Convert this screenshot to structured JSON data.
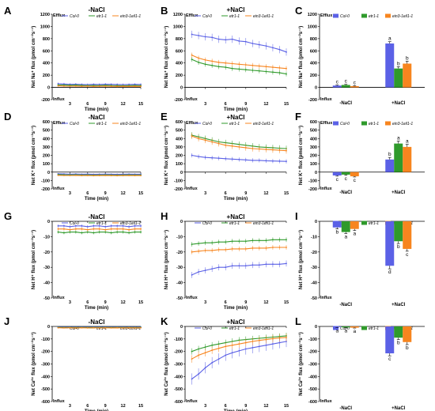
{
  "colors": {
    "col0": "#5b61e6",
    "etr1": "#2f9a2b",
    "ein3": "#f7851f"
  },
  "legend": [
    "Col-0",
    "etr1-1",
    "ein3-1eil1-1"
  ],
  "chart_data": [
    {
      "id": "A",
      "type": "line",
      "title": "-NaCl",
      "xlabel": "Time (min)",
      "ylabel": "Net Na⁺ flux (pmol cm⁻²s⁻¹)",
      "ylim": [
        -200,
        1200
      ],
      "yticks": [
        -200,
        0,
        200,
        400,
        600,
        800,
        1000,
        1200
      ],
      "xticks": [
        3,
        6,
        9,
        12,
        15
      ],
      "efflux": "Efflux",
      "influx": "Influx",
      "series": [
        {
          "name": "Col-0",
          "values": [
            60,
            55,
            50,
            52,
            48,
            45,
            50,
            47,
            52,
            50,
            48,
            45,
            47,
            50,
            48
          ],
          "err": 20
        },
        {
          "name": "etr1-1",
          "values": [
            40,
            38,
            35,
            37,
            33,
            30,
            32,
            30,
            34,
            31,
            30,
            28,
            30,
            32,
            30
          ],
          "err": 15
        },
        {
          "name": "ein3-1eil1-1",
          "values": [
            25,
            22,
            20,
            22,
            18,
            20,
            17,
            19,
            20,
            18,
            16,
            18,
            17,
            18,
            16
          ],
          "err": 12
        }
      ]
    },
    {
      "id": "B",
      "type": "line",
      "title": "+NaCl",
      "xlabel": "Time (min)",
      "ylabel": "Net Na⁺ flux (pmol cm⁻²s⁻¹)",
      "ylim": [
        -200,
        1200
      ],
      "yticks": [
        -200,
        0,
        200,
        400,
        600,
        800,
        1000,
        1200
      ],
      "xticks": [
        3,
        6,
        9,
        12,
        15
      ],
      "efflux": "Efflux",
      "influx": "Influx",
      "series": [
        {
          "name": "Col-0",
          "values": [
            870,
            850,
            830,
            820,
            790,
            780,
            790,
            760,
            750,
            720,
            700,
            680,
            650,
            620,
            580
          ],
          "err": 60
        },
        {
          "name": "etr1-1",
          "values": [
            460,
            410,
            380,
            360,
            340,
            330,
            310,
            300,
            290,
            280,
            270,
            260,
            250,
            240,
            220
          ],
          "err": 40
        },
        {
          "name": "ein3-1eil1-1",
          "values": [
            530,
            480,
            450,
            430,
            410,
            400,
            390,
            380,
            370,
            360,
            350,
            340,
            330,
            320,
            310
          ],
          "err": 40
        }
      ]
    },
    {
      "id": "C",
      "type": "bar",
      "categories": [
        "-NaCl",
        "+NaCl"
      ],
      "ylabel": "Net Na⁺ flux (pmol cm⁻²s⁻¹)",
      "ylim": [
        -200,
        1200
      ],
      "yticks": [
        -200,
        0,
        200,
        400,
        600,
        800,
        1000,
        1200
      ],
      "efflux": "Efflux",
      "influx": "Influx",
      "series": [
        {
          "name": "Col-0",
          "values": [
            30,
            720
          ],
          "err": [
            10,
            30
          ],
          "sig": [
            "c",
            "a"
          ]
        },
        {
          "name": "etr1-1",
          "values": [
            40,
            310
          ],
          "err": [
            10,
            30
          ],
          "sig": [
            "c",
            "b"
          ]
        },
        {
          "name": "ein3-1eil1-1",
          "values": [
            20,
            390
          ],
          "err": [
            10,
            40
          ],
          "sig": [
            "c",
            "b"
          ]
        }
      ]
    },
    {
      "id": "D",
      "type": "line",
      "title": "-NaCl",
      "xlabel": "Time (min)",
      "ylabel": "Net K⁺ flux (pmol cm⁻²s⁻¹)",
      "ylim": [
        -200,
        600
      ],
      "yticks": [
        -200,
        -100,
        0,
        100,
        200,
        300,
        400,
        500,
        600
      ],
      "xticks": [
        3,
        6,
        9,
        12,
        15
      ],
      "efflux": "Efflux",
      "influx": "Influx",
      "series": [
        {
          "name": "Col-0",
          "values": [
            -20,
            -22,
            -25,
            -23,
            -25,
            -24,
            -26,
            -25,
            -24,
            -25,
            -26,
            -25,
            -24,
            -25,
            -25
          ],
          "err": 8
        },
        {
          "name": "etr1-1",
          "values": [
            -30,
            -32,
            -33,
            -32,
            -34,
            -33,
            -35,
            -34,
            -33,
            -34,
            -35,
            -34,
            -33,
            -34,
            -34
          ],
          "err": 6
        },
        {
          "name": "ein3-1eil1-1",
          "values": [
            -38,
            -40,
            -40,
            -39,
            -41,
            -40,
            -42,
            -41,
            -40,
            -41,
            -42,
            -41,
            -40,
            -41,
            -41
          ],
          "err": 6
        }
      ]
    },
    {
      "id": "E",
      "type": "line",
      "title": "+NaCl",
      "xlabel": "Time (min)",
      "ylabel": "Net K⁺ flux (pmol cm⁻²s⁻¹)",
      "ylim": [
        -200,
        600
      ],
      "yticks": [
        -200,
        -100,
        0,
        100,
        200,
        300,
        400,
        500,
        600
      ],
      "xticks": [
        3,
        6,
        9,
        12,
        15
      ],
      "efflux": "Efflux",
      "influx": "Influx",
      "series": [
        {
          "name": "Col-0",
          "values": [
            200,
            185,
            175,
            170,
            165,
            160,
            155,
            150,
            145,
            140,
            140,
            135,
            132,
            130,
            128
          ],
          "err": 25
        },
        {
          "name": "etr1-1",
          "values": [
            440,
            420,
            400,
            380,
            360,
            350,
            340,
            330,
            320,
            310,
            300,
            295,
            290,
            285,
            280
          ],
          "err": 35
        },
        {
          "name": "ein3-1eil1-1",
          "values": [
            430,
            400,
            380,
            360,
            340,
            320,
            310,
            300,
            290,
            280,
            275,
            270,
            265,
            260,
            255
          ],
          "err": 35
        }
      ]
    },
    {
      "id": "F",
      "type": "bar",
      "categories": [
        "-NaCl",
        "+NaCl"
      ],
      "ylabel": "Net K⁺ flux (pmol cm⁻²s⁻¹)",
      "ylim": [
        -200,
        600
      ],
      "yticks": [
        -200,
        -100,
        0,
        100,
        200,
        300,
        400,
        500,
        600
      ],
      "efflux": "Efflux",
      "influx": "Influx",
      "series": [
        {
          "name": "Col-0",
          "values": [
            -40,
            150
          ],
          "err": [
            8,
            25
          ],
          "sig": [
            "c",
            "b"
          ]
        },
        {
          "name": "etr1-1",
          "values": [
            -30,
            340
          ],
          "err": [
            8,
            30
          ],
          "sig": [
            "c",
            "a"
          ]
        },
        {
          "name": "ein3-1eil1-1",
          "values": [
            -50,
            300
          ],
          "err": [
            8,
            30
          ],
          "sig": [
            "c",
            "a"
          ]
        }
      ]
    },
    {
      "id": "G",
      "type": "line",
      "title": "-NaCl",
      "xlabel": "Time (min)",
      "ylabel": "Net H⁺ flux (pmol cm⁻²s⁻¹)",
      "ylim": [
        -50,
        0
      ],
      "yticks": [
        -50,
        -40,
        -30,
        -20,
        -10,
        0
      ],
      "xticks": [
        3,
        6,
        9,
        12,
        15
      ],
      "influx": "Influx",
      "series": [
        {
          "name": "Col-0",
          "values": [
            -3,
            -3,
            -3.5,
            -3,
            -3,
            -3.5,
            -3,
            -3,
            -3.5,
            -3,
            -3,
            -3,
            -3.5,
            -3,
            -3
          ],
          "err": 1
        },
        {
          "name": "etr1-1",
          "values": [
            -7,
            -7.5,
            -7,
            -7,
            -7.5,
            -7,
            -7.5,
            -7,
            -7,
            -7.5,
            -7,
            -7,
            -7.5,
            -7,
            -7
          ],
          "err": 1
        },
        {
          "name": "ein3-1eil1-1",
          "values": [
            -5,
            -5,
            -5.5,
            -5,
            -5,
            -5.5,
            -5,
            -5,
            -5.5,
            -5,
            -5,
            -5,
            -5.5,
            -5,
            -5
          ],
          "err": 1
        }
      ]
    },
    {
      "id": "H",
      "type": "line",
      "title": "+NaCl",
      "xlabel": "Time (min)",
      "ylabel": "Net H⁺ flux (pmol cm⁻²s⁻¹)",
      "ylim": [
        -50,
        0
      ],
      "yticks": [
        -50,
        -40,
        -30,
        -20,
        -10,
        0
      ],
      "xticks": [
        3,
        6,
        9,
        12,
        15
      ],
      "influx": "Influx",
      "series": [
        {
          "name": "Col-0",
          "values": [
            -35,
            -33,
            -32,
            -31,
            -30,
            -30,
            -29,
            -29,
            -29,
            -28.5,
            -28.5,
            -28,
            -28,
            -28,
            -27.5
          ],
          "err": 2
        },
        {
          "name": "etr1-1",
          "values": [
            -15,
            -14.5,
            -14,
            -14,
            -13.5,
            -13.5,
            -13,
            -13,
            -13,
            -12.5,
            -12.5,
            -12.5,
            -12,
            -12,
            -12
          ],
          "err": 1.5
        },
        {
          "name": "ein3-1eil1-1",
          "values": [
            -20,
            -19.5,
            -19,
            -19,
            -18.5,
            -18.5,
            -18,
            -18,
            -18,
            -17.5,
            -17.5,
            -17.5,
            -17,
            -17,
            -17
          ],
          "err": 1.5
        }
      ]
    },
    {
      "id": "I",
      "type": "bar",
      "categories": [
        "-NaCl",
        "+NaCl"
      ],
      "ylabel": "Net H⁺ flux (pmol cm⁻²s⁻¹)",
      "ylim": [
        -50,
        0
      ],
      "yticks": [
        -50,
        -40,
        -30,
        -20,
        -10,
        0
      ],
      "influx": "Influx",
      "series": [
        {
          "name": "Col-0",
          "values": [
            -4,
            -29
          ],
          "err": [
            1,
            2
          ],
          "sig": [
            "b",
            "d"
          ]
        },
        {
          "name": "etr1-1",
          "values": [
            -7,
            -13
          ],
          "err": [
            1,
            1.5
          ],
          "sig": [
            "a",
            "b"
          ]
        },
        {
          "name": "ein3-1eil1-1",
          "values": [
            -5,
            -18
          ],
          "err": [
            1,
            1.5
          ],
          "sig": [
            "a",
            "c"
          ]
        }
      ]
    },
    {
      "id": "J",
      "type": "line",
      "title": "-NaCl",
      "xlabel": "Time (min)",
      "ylabel": "Net Ca²⁺ flux (pmol cm⁻²s⁻¹)",
      "ylim": [
        -600,
        0
      ],
      "yticks": [
        -600,
        -500,
        -400,
        -300,
        -200,
        -100,
        0
      ],
      "xticks": [
        3,
        6,
        9,
        12,
        15
      ],
      "influx": "Influx",
      "series": [
        {
          "name": "Col-0",
          "values": [
            -5,
            -6,
            -5,
            -6,
            -5,
            -6,
            -5,
            -6,
            -5,
            -6,
            -5,
            -6,
            -5,
            -6,
            -5
          ],
          "err": 4
        },
        {
          "name": "etr1-1",
          "values": [
            -8,
            -9,
            -8,
            -9,
            -8,
            -9,
            -8,
            -9,
            -8,
            -9,
            -8,
            -9,
            -8,
            -9,
            -8
          ],
          "err": 4
        },
        {
          "name": "ein3-1eil1-1",
          "values": [
            -11,
            -12,
            -11,
            -12,
            -11,
            -12,
            -11,
            -12,
            -11,
            -12,
            -11,
            -12,
            -11,
            -12,
            -11
          ],
          "err": 4
        }
      ]
    },
    {
      "id": "K",
      "type": "line",
      "title": "+NaCl",
      "xlabel": "Time (min)",
      "ylabel": "Net Ca²⁺ flux (pmol cm⁻²s⁻¹)",
      "ylim": [
        -600,
        0
      ],
      "yticks": [
        -600,
        -500,
        -400,
        -300,
        -200,
        -100,
        0
      ],
      "xticks": [
        3,
        6,
        9,
        12,
        15
      ],
      "influx": "Influx",
      "series": [
        {
          "name": "Col-0",
          "values": [
            -420,
            -380,
            -330,
            -290,
            -260,
            -230,
            -210,
            -195,
            -180,
            -170,
            -160,
            -150,
            -140,
            -130,
            -120
          ],
          "err": 45
        },
        {
          "name": "etr1-1",
          "values": [
            -200,
            -180,
            -165,
            -150,
            -140,
            -130,
            -120,
            -110,
            -105,
            -100,
            -95,
            -90,
            -85,
            -80,
            -75
          ],
          "err": 25
        },
        {
          "name": "ein3-1eil1-1",
          "values": [
            -260,
            -230,
            -210,
            -190,
            -175,
            -160,
            -150,
            -140,
            -130,
            -120,
            -112,
            -105,
            -98,
            -92,
            -88
          ],
          "err": 30
        }
      ]
    },
    {
      "id": "L",
      "type": "bar",
      "categories": [
        "-NaCl",
        "+NaCl"
      ],
      "ylabel": "Net Ca²⁺ flux (pmol cm⁻²s⁻¹)",
      "ylim": [
        -600,
        0
      ],
      "yticks": [
        -600,
        -500,
        -400,
        -300,
        -200,
        -100,
        0
      ],
      "influx": "Influx",
      "series": [
        {
          "name": "Col-0",
          "values": [
            -5,
            -215
          ],
          "err": [
            3,
            20
          ],
          "sig": [
            "a",
            "c"
          ]
        },
        {
          "name": "etr1-1",
          "values": [
            -8,
            -90
          ],
          "err": [
            3,
            15
          ],
          "sig": [
            "a",
            "b"
          ]
        },
        {
          "name": "ein3-1eil1-1",
          "values": [
            -10,
            -125
          ],
          "err": [
            3,
            20
          ],
          "sig": [
            "a",
            "b"
          ]
        }
      ]
    }
  ]
}
